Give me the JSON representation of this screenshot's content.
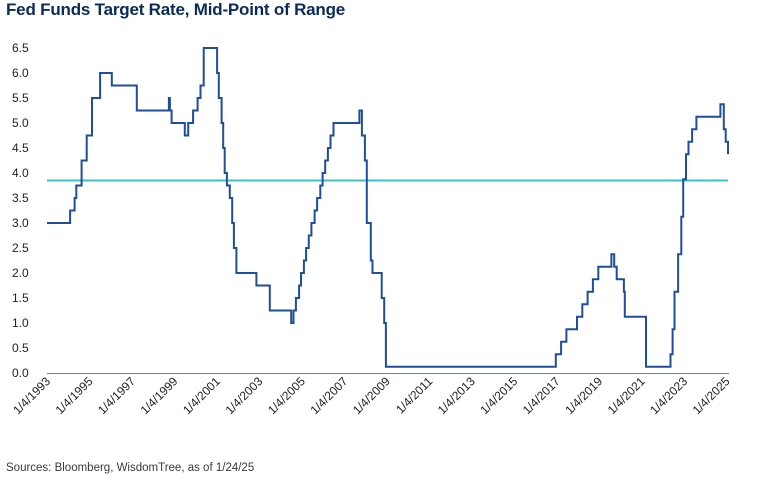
{
  "title": "Fed Funds Target Rate, Mid-Point of Range",
  "source": "Sources: Bloomberg, WisdomTree, as of 1/24/25",
  "colors": {
    "series": "#1f4e9a",
    "reference": "#3fc2c2",
    "axis": "#7f7f7f",
    "title": "#0b2a5b"
  },
  "chart_data": {
    "type": "line",
    "title": "Fed Funds Target Rate, Mid-Point of Range",
    "xlabel": "",
    "ylabel": "",
    "ylim": [
      0,
      6.5
    ],
    "xlim": [
      1993.0,
      2025.07
    ],
    "yticks": [
      "0.0",
      "0.5",
      "1.0",
      "1.5",
      "2.0",
      "2.5",
      "3.0",
      "3.5",
      "4.0",
      "4.5",
      "5.0",
      "5.5",
      "6.0",
      "6.5"
    ],
    "xticks": [
      "1/4/1993",
      "1/4/1995",
      "1/4/1997",
      "1/4/1999",
      "1/4/2001",
      "1/4/2003",
      "1/4/2005",
      "1/4/2007",
      "1/4/2009",
      "1/4/2011",
      "1/4/2013",
      "1/4/2015",
      "1/4/2017",
      "1/4/2019",
      "1/4/2021",
      "1/4/2023",
      "1/4/2025"
    ],
    "grid": false,
    "step": true,
    "reference_line": {
      "value": 3.85
    },
    "series": [
      {
        "x": [
          1993.0,
          1994.09,
          1994.3,
          1994.38,
          1994.63,
          1994.87,
          1995.12,
          1995.5,
          1996.05,
          1997.23,
          1998.74,
          1998.79,
          1998.87,
          1999.49,
          1999.65,
          1999.88,
          2000.09,
          2000.23,
          2000.38,
          2001.01,
          2001.09,
          2001.22,
          2001.3,
          2001.37,
          2001.47,
          2001.61,
          2001.72,
          2001.8,
          2001.92,
          2002.86,
          2003.49,
          2004.5,
          2004.61,
          2004.72,
          2004.87,
          2004.96,
          2005.1,
          2005.2,
          2005.33,
          2005.45,
          2005.6,
          2005.72,
          2005.87,
          2005.98,
          2006.1,
          2006.23,
          2006.35,
          2006.49,
          2007.71,
          2007.83,
          2007.97,
          2008.06,
          2008.25,
          2008.33,
          2008.76,
          2008.88,
          2008.96,
          2015.96,
          2016.96,
          2017.21,
          2017.46,
          2017.96,
          2018.21,
          2018.46,
          2018.71,
          2018.96,
          2019.58,
          2019.71,
          2019.83,
          2020.17,
          2020.21,
          2021.21,
          2022.21,
          2022.36,
          2022.46,
          2022.55,
          2022.72,
          2022.87,
          2022.96,
          2023.09,
          2023.21,
          2023.38,
          2023.58,
          2024.71,
          2024.87,
          2024.96,
          2025.07
        ],
        "y": [
          3.0,
          3.25,
          3.5,
          3.75,
          4.25,
          4.75,
          5.5,
          6.0,
          5.75,
          5.25,
          5.5,
          5.25,
          5.0,
          4.75,
          5.0,
          5.25,
          5.5,
          5.75,
          6.5,
          6.0,
          5.5,
          5.0,
          4.5,
          4.0,
          3.75,
          3.5,
          3.0,
          2.5,
          2.0,
          1.75,
          1.25,
          1.0,
          1.25,
          1.5,
          1.75,
          2.0,
          2.25,
          2.5,
          2.75,
          3.0,
          3.25,
          3.5,
          3.75,
          4.0,
          4.25,
          4.5,
          4.75,
          5.0,
          5.25,
          4.75,
          4.25,
          3.0,
          2.25,
          2.0,
          1.5,
          1.0,
          0.125,
          0.125,
          0.375,
          0.625,
          0.875,
          1.125,
          1.375,
          1.625,
          1.875,
          2.125,
          2.375,
          2.125,
          1.875,
          1.625,
          1.125,
          0.125,
          0.125,
          0.375,
          0.875,
          1.625,
          2.375,
          3.125,
          3.875,
          4.375,
          4.625,
          4.875,
          5.125,
          5.375,
          4.875,
          4.625,
          4.375
        ]
      }
    ]
  }
}
